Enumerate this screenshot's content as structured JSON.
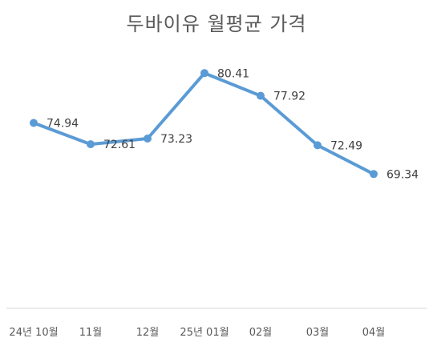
{
  "chart_data": {
    "type": "line",
    "title": "두바이유 월평균 가격",
    "categories": [
      "24년 10월",
      "11월",
      "12월",
      "25년 01월",
      "02월",
      "03월",
      "04월"
    ],
    "series": [
      {
        "values": [
          74.94,
          72.61,
          73.23,
          80.41,
          77.92,
          72.49,
          69.34
        ],
        "color": "#5b9bd5"
      }
    ],
    "data_labels": [
      "74.94",
      "72.61",
      "73.23",
      "80.41",
      "77.92",
      "72.49",
      "69.34"
    ],
    "ylim": [
      54.6,
      83.6
    ],
    "grid": false,
    "legend": "none"
  }
}
